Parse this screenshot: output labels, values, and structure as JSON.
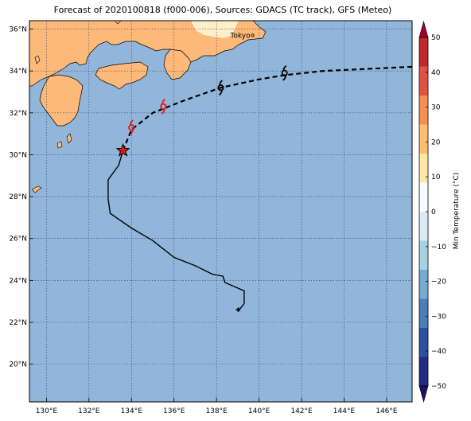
{
  "title": "Forecast of 2020100818 (f000-006), Sources: GDACS (TC track), GFS (Meteo)",
  "map": {
    "extent": {
      "lon": [
        129.2,
        147.2
      ],
      "lat": [
        18.2,
        36.4
      ]
    },
    "ocean_color": "#92b6d9",
    "land_color": "#fdb979",
    "cool_land_color": "#fdf0c8",
    "grid_lons": [
      130,
      132,
      134,
      136,
      138,
      140,
      142,
      144,
      146
    ],
    "grid_lats": [
      20,
      22,
      24,
      26,
      28,
      30,
      32,
      34,
      36
    ],
    "lon_labels": [
      "130°E",
      "132°E",
      "134°E",
      "136°E",
      "138°E",
      "140°E",
      "142°E",
      "144°E",
      "146°E"
    ],
    "lat_labels": [
      "20°N",
      "22°N",
      "24°N",
      "26°N",
      "28°N",
      "30°N",
      "32°N",
      "34°N",
      "36°N"
    ]
  },
  "city": {
    "name": "Tokyo",
    "lon": 139.7,
    "lat": 35.7
  },
  "track": {
    "past": [
      [
        139.0,
        22.5
      ],
      [
        139.3,
        22.9
      ],
      [
        139.3,
        23.5
      ],
      [
        138.4,
        23.9
      ],
      [
        138.3,
        24.2
      ],
      [
        137.8,
        24.3
      ],
      [
        137.0,
        24.7
      ],
      [
        136.0,
        25.1
      ],
      [
        135.0,
        25.9
      ],
      [
        134.0,
        26.5
      ],
      [
        133.0,
        27.2
      ],
      [
        132.9,
        27.9
      ],
      [
        132.9,
        28.8
      ],
      [
        133.4,
        29.5
      ],
      [
        133.6,
        30.2
      ]
    ],
    "forecast": [
      [
        133.6,
        30.2
      ],
      [
        134.0,
        31.2
      ],
      [
        135.0,
        32.0
      ],
      [
        136.5,
        32.6
      ],
      [
        138.2,
        33.2
      ],
      [
        140.0,
        33.6
      ],
      [
        141.2,
        33.8
      ],
      [
        143.0,
        34.0
      ],
      [
        147.2,
        34.2
      ]
    ],
    "current": {
      "lon": 133.6,
      "lat": 30.2,
      "color": "#e8141c"
    },
    "symbols": [
      {
        "lon": 134.0,
        "lat": 31.3,
        "color": "#e8141c"
      },
      {
        "lon": 135.5,
        "lat": 32.3,
        "color": "#e8141c"
      },
      {
        "lon": 138.2,
        "lat": 33.2,
        "color": "#000000"
      },
      {
        "lon": 141.2,
        "lat": 33.9,
        "color": "#000000"
      }
    ]
  },
  "colorbar": {
    "label": "Min Temperature (°C)",
    "ticks": [
      "50",
      "40",
      "30",
      "20",
      "10",
      "0",
      "−10",
      "−20",
      "−30",
      "−40",
      "−50"
    ],
    "colors": [
      "#a50026",
      "#c1272d",
      "#e15340",
      "#f68e52",
      "#fdbe72",
      "#fde7a7",
      "#f7fbff",
      "#dbeaf2",
      "#a7d0e4",
      "#76aace",
      "#4b7db9",
      "#2d4fa0",
      "#232a86",
      "#1a1466"
    ]
  }
}
